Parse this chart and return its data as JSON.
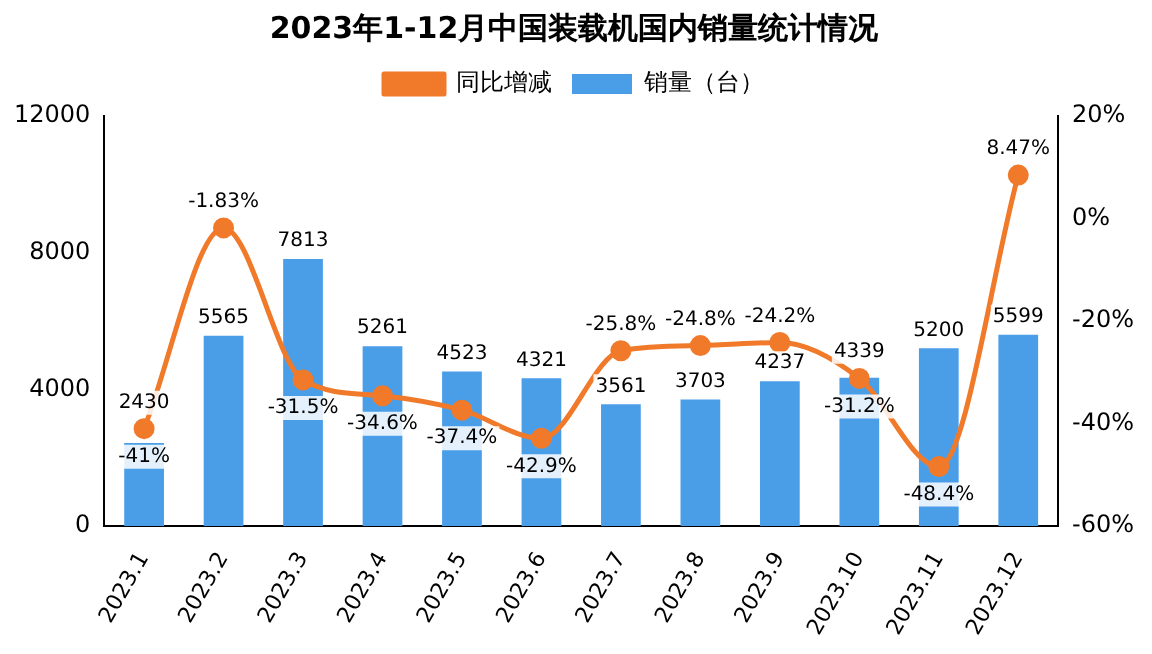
{
  "chart_data": {
    "type": "bar",
    "title": "2023年1-12月中国装载机国内销量统计情况",
    "categories": [
      "2023.1",
      "2023.2",
      "2023.3",
      "2023.4",
      "2023.5",
      "2023.6",
      "2023.7",
      "2023.8",
      "2023.9",
      "2023.10",
      "2023.11",
      "2023.12"
    ],
    "series": [
      {
        "name": "销量（台）",
        "color": "#4a9ee8",
        "values": [
          2430,
          5565,
          7813,
          5261,
          4523,
          4321,
          3561,
          3703,
          4237,
          4339,
          5200,
          5599
        ],
        "value_labels": [
          "2430",
          "5565",
          "7813",
          "5261",
          "4523",
          "4321",
          "3561",
          "3703",
          "4237",
          "4339",
          "5200",
          "5599"
        ]
      },
      {
        "name": "同比增减",
        "type": "line",
        "axis": "y2",
        "color": "#f07a2a",
        "values": [
          -41,
          -1.83,
          -31.5,
          -34.6,
          -37.4,
          -42.9,
          -25.8,
          -24.8,
          -24.2,
          -31.2,
          -48.4,
          8.47
        ],
        "value_labels": [
          "-41%",
          "-1.83%",
          "-31.5%",
          "-34.6%",
          "-37.4%",
          "-42.9%",
          "-25.8%",
          "-24.8%",
          "-24.2%",
          "-31.2%",
          "-48.4%",
          "8.47%"
        ]
      }
    ],
    "ylim": [
      0,
      12000
    ],
    "yticks": [
      0,
      4000,
      8000,
      12000
    ],
    "y2lim": [
      -60,
      20
    ],
    "y2ticks": [
      {
        "value": -60,
        "label": "-60%"
      },
      {
        "value": -40,
        "label": "-40%"
      },
      {
        "value": -20,
        "label": "-20%"
      },
      {
        "value": 0,
        "label": "0%"
      },
      {
        "value": 20,
        "label": "20%"
      }
    ],
    "legend": "top",
    "grid": false,
    "marker": "circle",
    "line_style": "solid"
  }
}
